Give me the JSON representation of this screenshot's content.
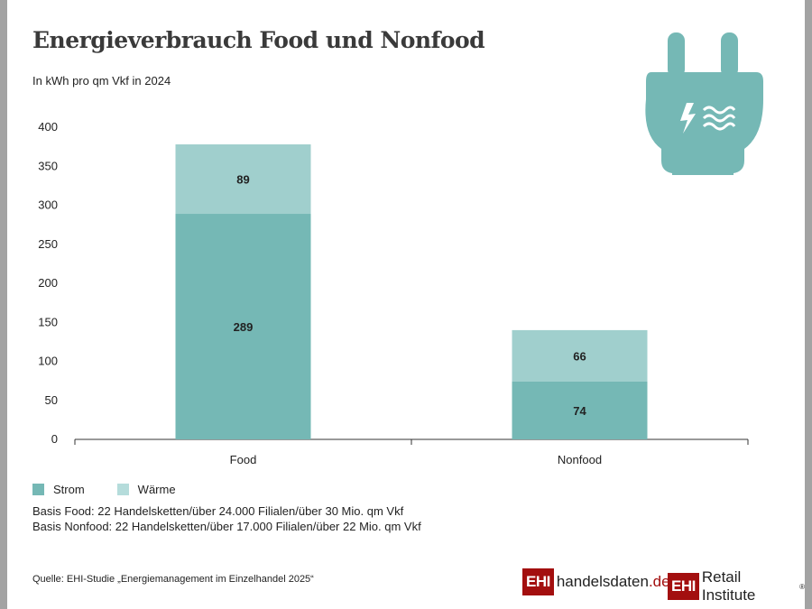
{
  "title": "Energieverbrauch Food und Nonfood",
  "subtitle": "In kWh pro qm Vkf in 2024",
  "chart_data": {
    "type": "bar",
    "stacked": true,
    "categories": [
      "Food",
      "Nonfood"
    ],
    "series": [
      {
        "name": "Strom",
        "values": [
          289,
          74
        ],
        "color": "#75b8b5"
      },
      {
        "name": "Wärme",
        "values": [
          89,
          66
        ],
        "color": "#a0cfcd"
      }
    ],
    "ylim": [
      0,
      400
    ],
    "yticks": [
      0,
      50,
      100,
      150,
      200,
      250,
      300,
      350,
      400
    ],
    "grid": false,
    "legend": "bottom-left"
  },
  "legend": [
    {
      "label": "Strom",
      "color": "#75b8b5"
    },
    {
      "label": "Wärme",
      "color": "#b5dcdb"
    }
  ],
  "notes": [
    "Basis Food: 22 Handelsketten/über 24.000 Filialen/über 30 Mio. qm Vkf",
    "Basis Nonfood: 22 Handelsketten/über 17.000 Filialen/über 22 Mio. qm Vkf"
  ],
  "source": "Quelle: EHI-Studie „Energiemanagement im Einzelhandel 2025“",
  "logos": {
    "handelsdaten": {
      "mark": "EHI",
      "text": "handelsdaten",
      "suffix": ".de"
    },
    "retail": {
      "mark": "EHI",
      "text": "Retail Institute",
      "reg": "®"
    }
  },
  "icon": "plug-energy-icon",
  "icon_color": "#75b8b5"
}
